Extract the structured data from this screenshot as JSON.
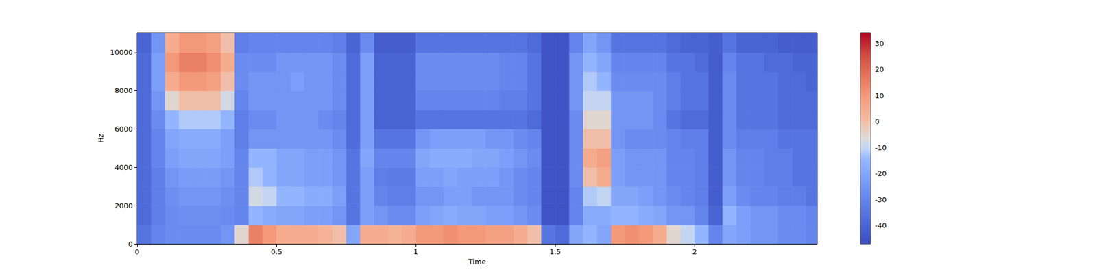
{
  "chart_data": {
    "type": "heatmap",
    "xlabel": "Time",
    "ylabel": "Hz",
    "color": "coolwarm",
    "grid": false,
    "xlim": [
      0,
      2.44
    ],
    "xticks": [
      0,
      0.5,
      1,
      1.5,
      2
    ],
    "ylim": [
      0,
      11025
    ],
    "yticks": [
      0,
      2000,
      4000,
      6000,
      8000,
      10000
    ],
    "x_bins": [
      0,
      0.05,
      0.1,
      0.15,
      0.2,
      0.25,
      0.3,
      0.35,
      0.4,
      0.45,
      0.5,
      0.55,
      0.6,
      0.65,
      0.7,
      0.75,
      0.8,
      0.85,
      0.9,
      0.95,
      1,
      1.05,
      1.1,
      1.15,
      1.2,
      1.25,
      1.3,
      1.35,
      1.4,
      1.45,
      1.5,
      1.55,
      1.6,
      1.65,
      1.7,
      1.75,
      1.8,
      1.85,
      1.9,
      1.95,
      2,
      2.05,
      2.1,
      2.15,
      2.2,
      2.25,
      2.3,
      2.35,
      2.4,
      2.44
    ],
    "y_bins": [
      0,
      1000,
      2000,
      3000,
      4000,
      5000,
      6000,
      7000,
      8000,
      9000,
      10000,
      11025
    ],
    "cells": [
      [
        -35,
        -30,
        -28,
        -28,
        -28,
        -28,
        -25,
        -5,
        15,
        10,
        5,
        5,
        5,
        3,
        0,
        -20,
        5,
        5,
        3,
        5,
        10,
        10,
        12,
        10,
        10,
        8,
        8,
        5,
        0,
        -35,
        -38,
        -20,
        -15,
        -20,
        10,
        12,
        10,
        5,
        -5,
        -10,
        -15,
        -30,
        -20,
        -22,
        -25,
        -25,
        -28,
        -28,
        -30
      ],
      [
        -38,
        -32,
        -28,
        -27,
        -27,
        -27,
        -28,
        -30,
        -15,
        -18,
        -20,
        -20,
        -22,
        -22,
        -25,
        -35,
        -22,
        -25,
        -28,
        -28,
        -22,
        -20,
        -18,
        -20,
        -20,
        -22,
        -22,
        -25,
        -28,
        -45,
        -45,
        -30,
        -18,
        -18,
        -15,
        -15,
        -18,
        -20,
        -25,
        -25,
        -30,
        -40,
        -15,
        -22,
        -25,
        -25,
        -28,
        -28,
        -30
      ],
      [
        -38,
        -32,
        -27,
        -25,
        -25,
        -25,
        -27,
        -30,
        -8,
        -10,
        -15,
        -15,
        -18,
        -18,
        -22,
        -35,
        -22,
        -30,
        -32,
        -32,
        -25,
        -25,
        -22,
        -22,
        -25,
        -25,
        -25,
        -28,
        -30,
        -45,
        -45,
        -30,
        -12,
        -10,
        -20,
        -20,
        -22,
        -25,
        -28,
        -30,
        -32,
        -42,
        -22,
        -28,
        -30,
        -30,
        -32,
        -32,
        -35
      ],
      [
        -38,
        -32,
        -25,
        -23,
        -23,
        -23,
        -25,
        -30,
        -12,
        -15,
        -20,
        -20,
        -22,
        -22,
        -25,
        -35,
        -22,
        -32,
        -33,
        -33,
        -22,
        -22,
        -20,
        -22,
        -22,
        -22,
        -25,
        -28,
        -30,
        -45,
        -45,
        -28,
        0,
        5,
        -22,
        -25,
        -25,
        -25,
        -30,
        -30,
        -32,
        -42,
        -25,
        -30,
        -30,
        -32,
        -32,
        -35,
        -35
      ],
      [
        -38,
        -30,
        -22,
        -20,
        -20,
        -20,
        -22,
        -30,
        -15,
        -15,
        -20,
        -20,
        -22,
        -22,
        -25,
        -35,
        -20,
        -30,
        -30,
        -30,
        -20,
        -18,
        -18,
        -18,
        -20,
        -20,
        -22,
        -25,
        -28,
        -45,
        -45,
        -28,
        5,
        8,
        -22,
        -25,
        -25,
        -25,
        -30,
        -30,
        -32,
        -42,
        -25,
        -30,
        -30,
        -32,
        -32,
        -35,
        -35
      ],
      [
        -38,
        -30,
        -20,
        -18,
        -18,
        -18,
        -22,
        -32,
        -25,
        -25,
        -25,
        -25,
        -25,
        -25,
        -28,
        -38,
        -22,
        -35,
        -35,
        -35,
        -25,
        -22,
        -22,
        -22,
        -22,
        -25,
        -25,
        -28,
        -30,
        -45,
        -45,
        -28,
        0,
        0,
        -25,
        -28,
        -28,
        -28,
        -30,
        -32,
        -32,
        -42,
        -28,
        -32,
        -32,
        -32,
        -35,
        -35,
        -35
      ],
      [
        -38,
        -28,
        -15,
        -12,
        -12,
        -12,
        -15,
        -32,
        -28,
        -28,
        -25,
        -25,
        -25,
        -28,
        -30,
        -38,
        -22,
        -40,
        -40,
        -40,
        -35,
        -35,
        -35,
        -35,
        -35,
        -35,
        -35,
        -35,
        -38,
        -45,
        -45,
        -28,
        -5,
        -5,
        -25,
        -25,
        -25,
        -28,
        -35,
        -38,
        -38,
        -42,
        -28,
        -35,
        -35,
        -35,
        -38,
        -38,
        -38
      ],
      [
        -38,
        -25,
        -5,
        0,
        0,
        0,
        -8,
        -30,
        -25,
        -25,
        -25,
        -25,
        -25,
        -25,
        -28,
        -38,
        -22,
        -40,
        -40,
        -40,
        -30,
        -30,
        -30,
        -30,
        -30,
        -30,
        -32,
        -32,
        -35,
        -45,
        -45,
        -25,
        -10,
        -10,
        -25,
        -25,
        -25,
        -28,
        -32,
        -35,
        -35,
        -42,
        -28,
        -35,
        -35,
        -35,
        -38,
        -38,
        -38
      ],
      [
        -38,
        -22,
        5,
        10,
        10,
        8,
        0,
        -28,
        -25,
        -25,
        -25,
        -22,
        -25,
        -25,
        -28,
        -38,
        -22,
        -40,
        -40,
        -40,
        -28,
        -28,
        -28,
        -28,
        -28,
        -28,
        -30,
        -30,
        -35,
        -45,
        -45,
        -25,
        -12,
        -15,
        -28,
        -28,
        -28,
        -28,
        -32,
        -35,
        -35,
        -42,
        -28,
        -35,
        -35,
        -35,
        -38,
        -38,
        -40
      ],
      [
        -38,
        -22,
        10,
        15,
        15,
        12,
        5,
        -28,
        -28,
        -28,
        -25,
        -25,
        -25,
        -25,
        -28,
        -38,
        -22,
        -40,
        -40,
        -40,
        -28,
        -28,
        -28,
        -28,
        -28,
        -28,
        -30,
        -30,
        -35,
        -45,
        -45,
        -25,
        -15,
        -20,
        -30,
        -30,
        -30,
        -30,
        -35,
        -35,
        -38,
        -42,
        -30,
        -35,
        -35,
        -38,
        -38,
        -40,
        -40
      ],
      [
        -40,
        -25,
        5,
        10,
        10,
        8,
        0,
        -32,
        -30,
        -30,
        -30,
        -30,
        -30,
        -30,
        -32,
        -40,
        -28,
        -42,
        -42,
        -42,
        -35,
        -35,
        -35,
        -35,
        -35,
        -35,
        -35,
        -35,
        -38,
        -45,
        -45,
        -30,
        -20,
        -25,
        -35,
        -35,
        -35,
        -35,
        -38,
        -40,
        -40,
        -42,
        -35,
        -40,
        -40,
        -40,
        -42,
        -42,
        -42
      ]
    ],
    "colorbar": {
      "range": [
        -47,
        34
      ],
      "ticks": [
        -40,
        -30,
        -20,
        -10,
        0,
        10,
        20,
        30
      ]
    }
  }
}
